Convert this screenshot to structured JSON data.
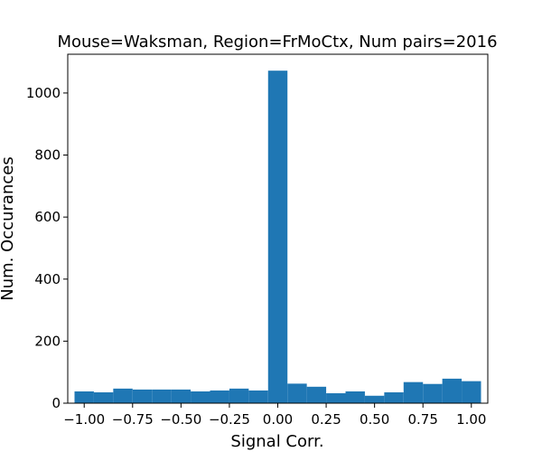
{
  "chart_data": {
    "type": "bar",
    "title": "Mouse=Waksman, Region=FrMoCtx, Num pairs=2016",
    "xlabel": "Signal Corr.",
    "ylabel": "Num. Occurances",
    "xlim": [
      -1.085,
      1.085
    ],
    "ylim": [
      0,
      1125
    ],
    "grid": false,
    "legend": "none",
    "bar_color": "#1f77b4",
    "x_ticks": [
      -1.0,
      -0.75,
      -0.5,
      -0.25,
      0.0,
      0.25,
      0.5,
      0.75,
      1.0
    ],
    "x_tick_labels": [
      "−1.00",
      "−0.75",
      "−0.50",
      "−0.25",
      "0.00",
      "0.25",
      "0.50",
      "0.75",
      "1.00"
    ],
    "y_ticks": [
      0,
      200,
      400,
      600,
      800,
      1000
    ],
    "y_tick_labels": [
      "0",
      "200",
      "400",
      "600",
      "800",
      "1000"
    ],
    "bins": [
      {
        "x0": -1.05,
        "x1": -0.95,
        "count": 38
      },
      {
        "x0": -0.95,
        "x1": -0.85,
        "count": 35
      },
      {
        "x0": -0.85,
        "x1": -0.75,
        "count": 47
      },
      {
        "x0": -0.75,
        "x1": -0.65,
        "count": 44
      },
      {
        "x0": -0.65,
        "x1": -0.55,
        "count": 44
      },
      {
        "x0": -0.55,
        "x1": -0.45,
        "count": 44
      },
      {
        "x0": -0.45,
        "x1": -0.35,
        "count": 38
      },
      {
        "x0": -0.35,
        "x1": -0.25,
        "count": 41
      },
      {
        "x0": -0.25,
        "x1": -0.15,
        "count": 47
      },
      {
        "x0": -0.15,
        "x1": -0.05,
        "count": 41
      },
      {
        "x0": -0.05,
        "x1": 0.05,
        "count": 1072
      },
      {
        "x0": 0.05,
        "x1": 0.15,
        "count": 63
      },
      {
        "x0": 0.15,
        "x1": 0.25,
        "count": 53
      },
      {
        "x0": 0.25,
        "x1": 0.35,
        "count": 32
      },
      {
        "x0": 0.35,
        "x1": 0.45,
        "count": 38
      },
      {
        "x0": 0.45,
        "x1": 0.55,
        "count": 24
      },
      {
        "x0": 0.55,
        "x1": 0.65,
        "count": 35
      },
      {
        "x0": 0.65,
        "x1": 0.75,
        "count": 68
      },
      {
        "x0": 0.75,
        "x1": 0.85,
        "count": 62
      },
      {
        "x0": 0.85,
        "x1": 0.95,
        "count": 79
      },
      {
        "x0": 0.95,
        "x1": 1.05,
        "count": 71
      }
    ]
  }
}
